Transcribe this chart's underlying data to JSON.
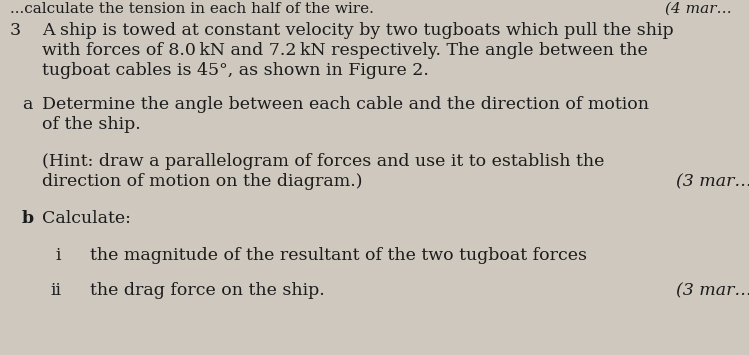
{
  "background_color": "#cec8be",
  "question_number": "3",
  "main_text_line1": "A ship is towed at constant velocity by two tugboats which pull the ship",
  "main_text_line2": "with forces of 8.0 kN and 7.2 kN respectively. The angle between the",
  "main_text_line3": "tugboat cables is 45°, as shown in Figure 2.",
  "part_a_label": "a",
  "part_a_line1": "Determine the angle between each cable and the direction of motion",
  "part_a_line2": "of the ship.",
  "hint_line1": "(Hint: draw a parallelogram of forces and use it to establish the",
  "hint_line2": "direction of motion on the diagram.)",
  "hint_marks": "(3 mar…",
  "part_b_label": "b",
  "part_b_text": "Calculate:",
  "part_bi_label": "i",
  "part_bi_text": "the magnitude of the resultant of the two tugboat forces",
  "part_bii_label": "ii",
  "part_bii_text": "the drag force on the ship.",
  "part_bii_marks": "(3 mar…",
  "top_text_left": "...calculate the tension in each half of the wire.",
  "top_marks_right": "(4 mar…",
  "font_size": 12.5,
  "font_size_top": 11.0,
  "text_color": "#1c1c1c"
}
